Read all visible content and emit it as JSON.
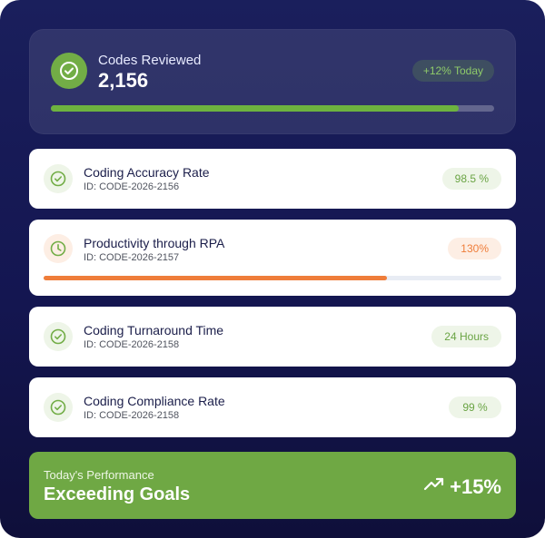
{
  "summary": {
    "label": "Codes Reviewed",
    "value": "2,156",
    "badge": "+12% Today",
    "progress": 0.92,
    "icon": "check-circle-icon"
  },
  "metrics": [
    {
      "title": "Coding Accuracy Rate",
      "id": "ID: CODE-2026-2156",
      "value": "98.5 %",
      "status": "success",
      "icon": "check-circle-icon"
    },
    {
      "title": "Productivity through RPA",
      "id": "ID: CODE-2026-2157",
      "value": "130%",
      "status": "warning",
      "icon": "clock-icon",
      "progress": 0.75
    },
    {
      "title": "Coding Turnaround Time",
      "id": "ID: CODE-2026-2158",
      "value": "24 Hours",
      "status": "success",
      "icon": "check-circle-icon"
    },
    {
      "title": "Coding Compliance Rate",
      "id": "ID: CODE-2026-2158",
      "value": "99 %",
      "status": "success",
      "icon": "check-circle-icon"
    }
  ],
  "performance": {
    "label": "Today's Performance",
    "value": "Exceeding Goals",
    "change": "+15%",
    "icon": "trending-up-icon"
  },
  "colors": {
    "background": "#141651",
    "success": "#72ad46",
    "warning": "#ef7d3a",
    "success_badge_bg": "#eef5e8",
    "warning_badge_bg": "#fdeee4"
  }
}
